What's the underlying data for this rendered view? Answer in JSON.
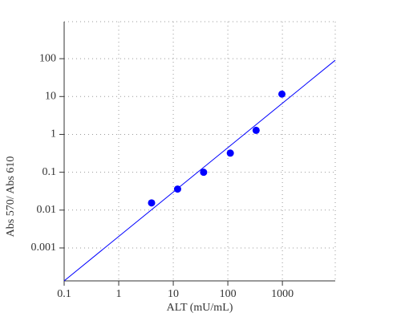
{
  "chart_data": {
    "type": "scatter",
    "x_label": "ALT (mU/mL)",
    "y_label": "Abs 570/ Abs 610",
    "xscale": "log",
    "yscale": "log",
    "grid": true,
    "xlim": [
      0.1,
      9300
    ],
    "ylim": [
      0.000135,
      950
    ],
    "xticks": [
      0.1,
      1,
      10,
      100,
      1000
    ],
    "yticks": [
      0.001,
      0.01,
      0.1,
      1,
      10,
      100
    ],
    "series": [
      {
        "type": "scatter",
        "color": "#0000ff",
        "x": [
          4,
          12,
          36,
          111,
          330,
          980
        ],
        "values": [
          0.0155,
          0.036,
          0.1,
          0.32,
          1.28,
          11.6
        ]
      },
      {
        "type": "line",
        "color": "#0000ff",
        "x": [
          0.1,
          9300
        ],
        "values": [
          0.000135,
          91
        ]
      }
    ]
  }
}
